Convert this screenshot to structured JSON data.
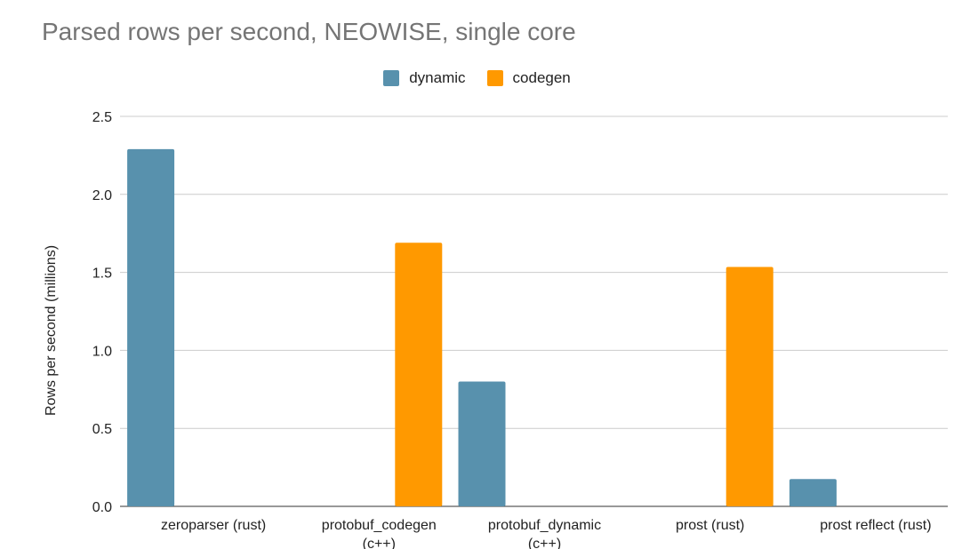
{
  "chart_data": {
    "type": "bar",
    "title": "Parsed rows per second, NEOWISE, single core",
    "xlabel": "",
    "ylabel": "Rows per second (millions)",
    "ylim": [
      0,
      2.5
    ],
    "yticks": [
      "0.0",
      "0.5",
      "1.0",
      "1.5",
      "2.0",
      "2.5"
    ],
    "grid": true,
    "legend_position": "top-center",
    "categories": [
      [
        "zeroparser (rust)"
      ],
      [
        "protobuf_codegen",
        "(c++)"
      ],
      [
        "protobuf_dynamic",
        "(c++)"
      ],
      [
        "prost (rust)"
      ],
      [
        "prost reflect (rust)"
      ]
    ],
    "series": [
      {
        "name": "dynamic",
        "color": "#5891ad",
        "values": [
          2.29,
          0,
          0.8,
          0,
          0.175
        ]
      },
      {
        "name": "codegen",
        "color": "#ff9900",
        "values": [
          0,
          1.69,
          0,
          1.535,
          0
        ]
      }
    ]
  }
}
